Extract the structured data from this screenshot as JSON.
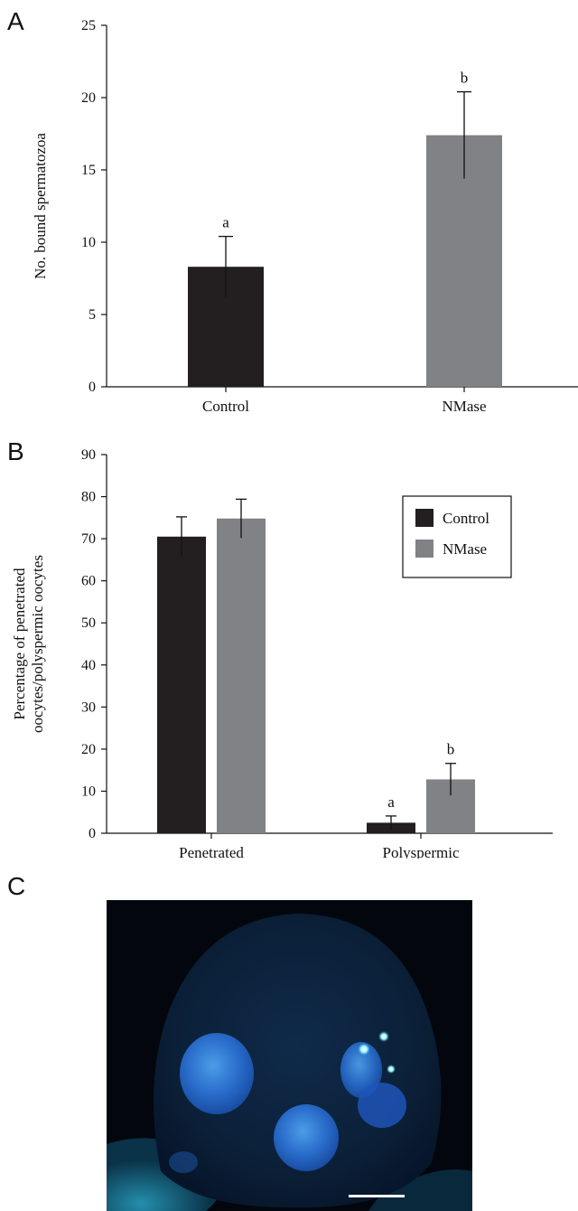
{
  "panels": {
    "a": "A",
    "b": "B",
    "c": "C"
  },
  "colors": {
    "control": "#231f20",
    "nmase": "#808285"
  },
  "chart_data": [
    {
      "type": "bar",
      "categories": [
        "Control",
        "NMase"
      ],
      "values": [
        8.3,
        17.4
      ],
      "errors": [
        2.1,
        3.0
      ],
      "significance": [
        "a",
        "b"
      ],
      "ylabel": "No. bound spermatozoa",
      "ylim": [
        0,
        25
      ],
      "yticks": [
        0,
        5,
        10,
        15,
        20,
        25
      ],
      "grid": false
    },
    {
      "type": "bar",
      "categories": [
        "Penetrated",
        "Polyspermic"
      ],
      "series": [
        {
          "name": "Control",
          "values": [
            70.5,
            2.5
          ],
          "errors": [
            4.7,
            1.6
          ],
          "significance": [
            "",
            "a"
          ]
        },
        {
          "name": "NMase",
          "values": [
            74.8,
            12.8
          ],
          "errors": [
            4.6,
            3.8
          ],
          "significance": [
            "",
            "b"
          ]
        }
      ],
      "ylabel": "Percentage of penetrated oocytes/polyspermic oocytes",
      "ylabel_lines": [
        "Percentage of penetrated",
        "oocytes/polyspermic oocytes"
      ],
      "ylim": [
        0,
        90
      ],
      "yticks": [
        0,
        10,
        20,
        30,
        40,
        50,
        60,
        70,
        80,
        90
      ],
      "legend": "top-right",
      "grid": false
    }
  ]
}
